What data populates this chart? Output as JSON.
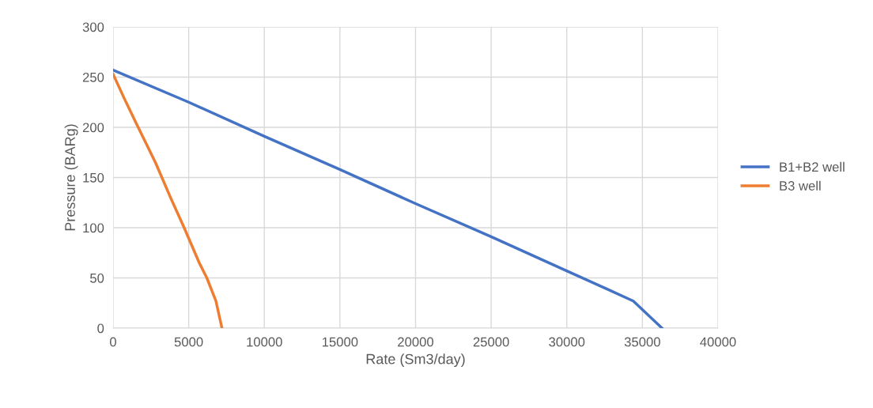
{
  "chart_data": {
    "type": "line",
    "xlabel": "Rate (Sm3/day)",
    "ylabel": "Pressure (BARg)",
    "xlim": [
      0,
      40000
    ],
    "xticks": [
      0,
      5000,
      10000,
      15000,
      20000,
      25000,
      30000,
      35000,
      40000
    ],
    "ylim": [
      0,
      300
    ],
    "yticks": [
      0,
      50,
      100,
      150,
      200,
      250,
      300
    ],
    "grid": true,
    "legend": "right",
    "marker": "none",
    "line_style": "solid",
    "series": [
      {
        "name": "B1+B2 well",
        "color": "#4472c4",
        "x": [
          0,
          5000,
          10000,
          15000,
          20000,
          25000,
          30000,
          32500,
          34400,
          36300
        ],
        "values": [
          257,
          225,
          191,
          158,
          124,
          91,
          57,
          40,
          27,
          0
        ]
      },
      {
        "name": "B3 well",
        "color": "#ed7d31",
        "x": [
          0,
          700,
          1500,
          2800,
          3800,
          4700,
          5700,
          6200,
          6800,
          7200
        ],
        "values": [
          253,
          230,
          205,
          165,
          130,
          100,
          65,
          50,
          27,
          0
        ]
      }
    ]
  }
}
